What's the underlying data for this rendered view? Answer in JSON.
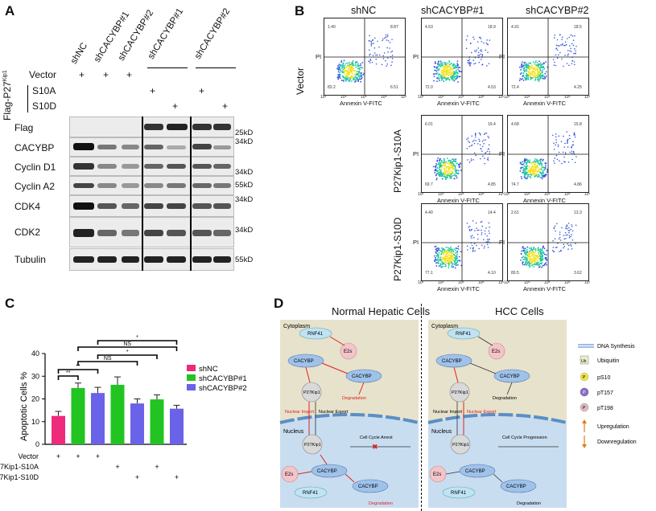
{
  "panels": {
    "a": "A",
    "b": "B",
    "c": "C",
    "d": "D"
  },
  "panel_a": {
    "lanes": [
      "shNC",
      "shCACYBP#1",
      "shCACYBP#2",
      "shCACYBP#1",
      "shCACYBP#2"
    ],
    "row_vector": "Vector",
    "row_flag_p27": "Flag-P27",
    "row_flag_sup": "Kip1",
    "row_s10a": "S10A",
    "row_s10d": "S10D",
    "plus": "+",
    "bands": [
      "Flag",
      "CACYBP",
      "Cyclin D1",
      "Cyclin A2",
      "CDK4",
      "CDK2",
      "Tubulin"
    ],
    "mw": [
      "25kD",
      "34kD",
      "34kD",
      "55kD",
      "34kD",
      "34kD",
      "55kD"
    ]
  },
  "panel_b": {
    "col_titles": [
      "shNC",
      "shCACYBP#1",
      "shCACYBP#2"
    ],
    "row_vector": "Vector",
    "row_s10a": "P27Kip1-S10A",
    "row_s10d": "P27Kip1-S10D",
    "x_axis": "Annexin V-FITC",
    "y_axis": "PI",
    "ticks": [
      "10³",
      "10⁴",
      "10⁵",
      "10⁶",
      "10⁷"
    ],
    "plots": [
      {
        "q": [
          "1.40",
          "8.87",
          "83.2",
          "6.51"
        ]
      },
      {
        "q": [
          "4.53",
          "18.9",
          "72.0",
          "4.53"
        ]
      },
      {
        "q": [
          "4.91",
          "18.5",
          "72.4",
          "4.25"
        ]
      },
      {
        "q": [
          "6.01",
          "19.4",
          "69.7",
          "4.85"
        ]
      },
      {
        "q": [
          "4.68",
          "15.8",
          "74.7",
          "4.86"
        ]
      },
      {
        "q": [
          "4.40",
          "14.4",
          "77.1",
          "4.10"
        ]
      },
      {
        "q": [
          "2.61",
          "13.3",
          "80.5",
          "3.62"
        ]
      }
    ]
  },
  "chart_data": {
    "type": "bar",
    "ylabel": "Apoptotic Cells %",
    "ylim": [
      0,
      40
    ],
    "yticks": [
      "0",
      "10",
      "20",
      "30",
      "40"
    ],
    "legend": [
      {
        "name": "shNC",
        "color": "#ee2a7b"
      },
      {
        "name": "shCACYBP#1",
        "color": "#22c422"
      },
      {
        "name": "shCACYBP#2",
        "color": "#6a62e8"
      }
    ],
    "bars": [
      {
        "group": "shNC",
        "value": 12.5,
        "err": 2.0,
        "color": "#ee2a7b"
      },
      {
        "group": "shCACYBP#1",
        "value": 24.8,
        "err": 2.2,
        "color": "#22c422"
      },
      {
        "group": "shCACYBP#2",
        "value": 22.6,
        "err": 2.5,
        "color": "#6a62e8"
      },
      {
        "group": "shCACYBP#1",
        "value": 26.2,
        "err": 3.5,
        "color": "#22c422"
      },
      {
        "group": "shCACYBP#2",
        "value": 18.0,
        "err": 2.0,
        "color": "#6a62e8"
      },
      {
        "group": "shCACYBP#1",
        "value": 19.8,
        "err": 2.0,
        "color": "#22c422"
      },
      {
        "group": "shCACYBP#2",
        "value": 15.7,
        "err": 1.5,
        "color": "#6a62e8"
      }
    ],
    "rows": [
      {
        "label": "Vector",
        "marks": [
          "+",
          "+",
          "+",
          "",
          "",
          "",
          ""
        ]
      },
      {
        "label": "P27Kip1-S10A",
        "marks": [
          "",
          "",
          "",
          "+",
          "",
          "+",
          ""
        ]
      },
      {
        "label": "P27Kip1-S10D",
        "marks": [
          "",
          "",
          "",
          "",
          "+",
          "",
          "+"
        ]
      }
    ],
    "significance": [
      "**",
      "**",
      "NS",
      "*",
      "NS",
      "*"
    ]
  },
  "panel_d": {
    "normal_title": "Normal Hepatic Cells",
    "hcc_title": "HCC Cells",
    "cytoplasm": "Cytoplasm",
    "nucleus": "Nucleus",
    "rnf41": "RNF41",
    "e2s": "E2s",
    "cacybp": "CACYBP",
    "p27": "P27Kip1",
    "degradation": "Degradation",
    "nuclear_import": "Nuclear Import",
    "nuclear_export": "Nuclear Export",
    "arrest": "Cell Cycle Arrest",
    "progression": "Cell Cycle Progression",
    "ub": "Ub",
    "legend": [
      "DNA Synthesis",
      "Ubiquitin",
      "pS10",
      "pT157",
      "pT198",
      "Upregulation",
      "Downregulation"
    ],
    "legend_icons": [
      "Ub",
      "P",
      "P",
      "P"
    ]
  }
}
